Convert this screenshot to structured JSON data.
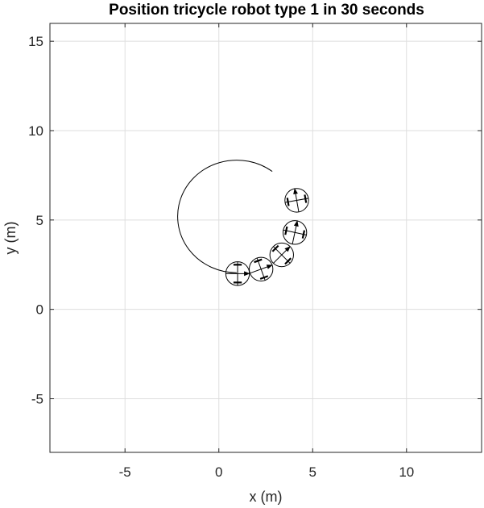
{
  "chart_data": {
    "type": "line",
    "title": "Position tricycle robot type 1 in 30 seconds",
    "xlabel": "x (m)",
    "ylabel": "y (m)",
    "xlim": [
      -9,
      14
    ],
    "ylim": [
      -8,
      16
    ],
    "xticks": [
      -5,
      0,
      5,
      10
    ],
    "yticks": [
      -5,
      0,
      5,
      10,
      15
    ],
    "xtick_labels": [
      "-5",
      "0",
      "5",
      "10"
    ],
    "ytick_labels": [
      "-5",
      "0",
      "5",
      "10",
      "15"
    ],
    "grid": true,
    "trajectory": {
      "center": [
        0.95,
        5.2
      ],
      "radius": 3.15,
      "start_angle_deg": 53,
      "end_angle_deg": -90
    },
    "robots": [
      {
        "x": 1.0,
        "y": 2.0,
        "heading_deg": 0
      },
      {
        "x": 2.25,
        "y": 2.25,
        "heading_deg": 20
      },
      {
        "x": 3.35,
        "y": 3.05,
        "heading_deg": 45
      },
      {
        "x": 4.05,
        "y": 4.3,
        "heading_deg": 78
      },
      {
        "x": 4.15,
        "y": 6.1,
        "heading_deg": 100
      }
    ],
    "robot_radius": 0.63
  }
}
